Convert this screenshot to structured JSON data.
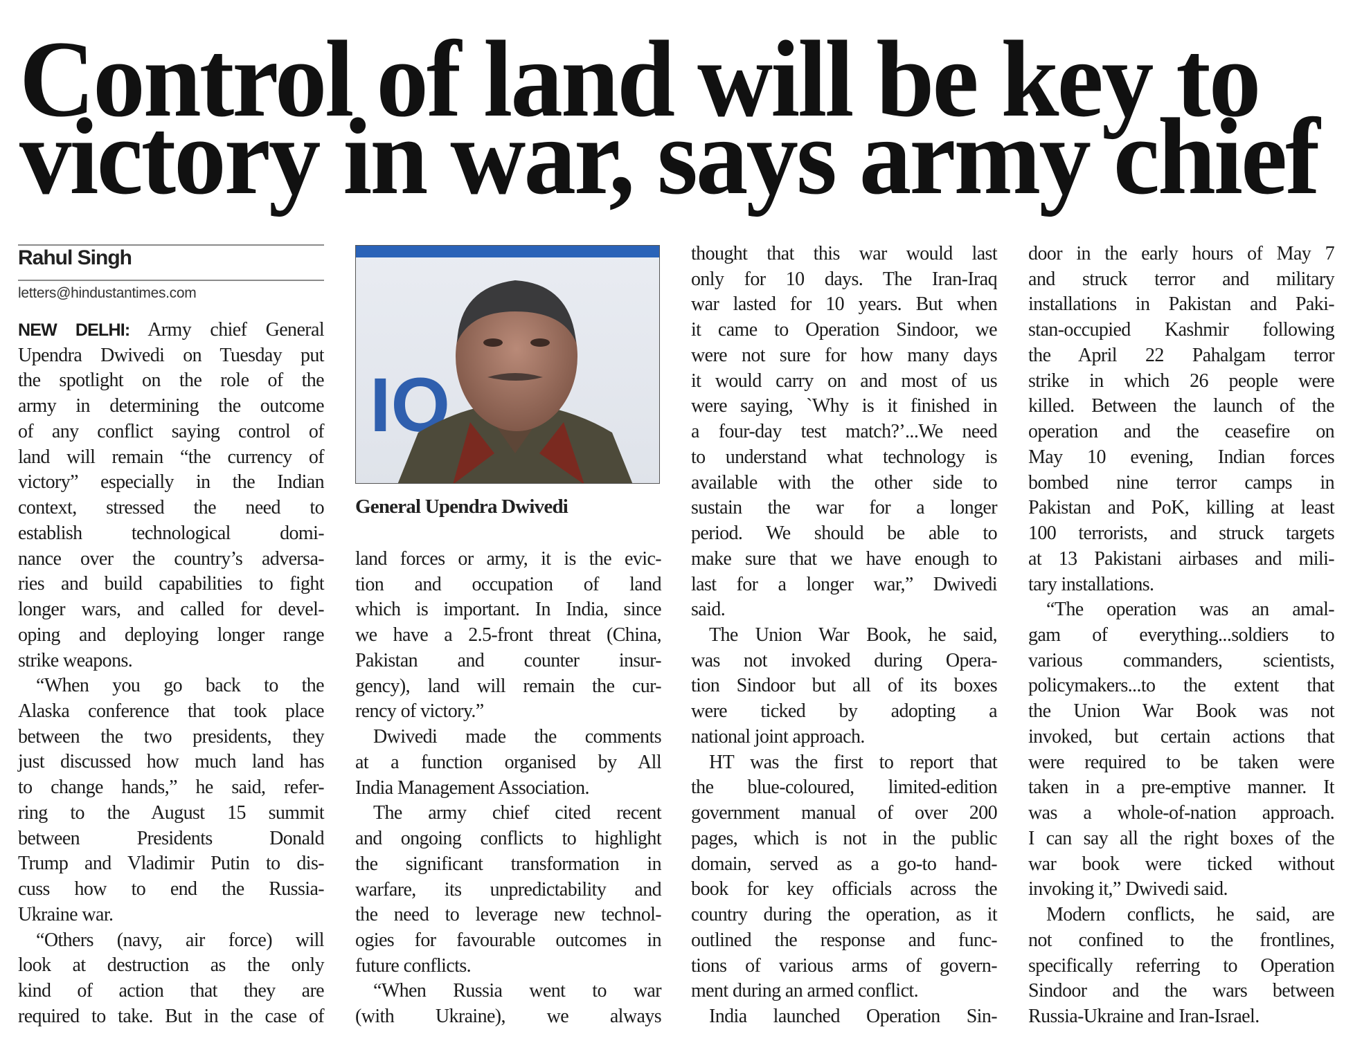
{
  "headline": {
    "line1": "Control of land will be key to",
    "line2": "victory in war, says army chief"
  },
  "byline": {
    "author": "Rahul Singh",
    "email": "letters@hindustantimes.com"
  },
  "photo": {
    "caption": "General Upendra Dwivedi",
    "backdrop_text": "IOIA"
  },
  "dateline": "NEW DELHI:",
  "columns": [
    [
      {
        "lines": [
          "Army chief General",
          "Upendra Dwivedi on Tuesday put",
          "the spotlight on the role of the",
          "army in determining the outcome",
          "of any conflict saying control of",
          "land will remain “the currency of",
          "victory” especially in the Indian",
          "context, stressed the need to",
          "establish technological domi-",
          "nance over the country’s adversa-",
          "ries and build capabilities to fight",
          "longer wars, and called for devel-",
          "oping and deploying longer range",
          "strike weapons."
        ]
      },
      {
        "lines": [
          "“When you go back to the",
          "Alaska conference that took place",
          "between the two presidents, they",
          "just discussed how much land has",
          "to change hands,” he said, refer-",
          "ring to the August 15 summit",
          "between Presidents Donald",
          "Trump and Vladimir Putin to dis-",
          "cuss how to end the Russia-",
          "Ukraine war."
        ]
      },
      {
        "lines": [
          "“Others (navy, air force) will",
          "look at destruction as the only",
          "kind of action that they are",
          "required to take. But in the case of"
        ],
        "continues": true
      }
    ],
    [
      {
        "lines": [
          "land forces or army, it is the evic-",
          "tion and occupation of land",
          "which is important. In India, since",
          "we have a 2.5-front threat (China,",
          "Pakistan and counter insur-",
          "gency), land will remain the cur-",
          "rency of victory.”"
        ],
        "continued": true
      },
      {
        "lines": [
          "Dwivedi made the comments",
          "at a function organised by All",
          "India Management Association."
        ]
      },
      {
        "lines": [
          "The army chief cited recent",
          "and ongoing conflicts to highlight",
          "the significant transformation in",
          "warfare, its unpredictability and",
          "the need to leverage new technol-",
          "ogies for favourable outcomes in",
          "future conflicts."
        ]
      },
      {
        "lines": [
          "“When Russia went to war",
          "(with Ukraine), we always"
        ],
        "continues": true
      }
    ],
    [
      {
        "lines": [
          "thought that this war would last",
          "only for 10 days. The Iran-Iraq",
          "war lasted for 10 years. But when",
          "it came to Operation Sindoor, we",
          "were not sure for how many days",
          "it would carry on and most of us",
          "were saying, `Why is it finished in",
          "a four-day test match?’...We need",
          "to understand what technology is",
          "available with the other side to",
          "sustain the war for a longer",
          "period. We should be able to",
          "make sure that we have enough to",
          "last for a longer war,” Dwivedi",
          "said."
        ],
        "continued": true
      },
      {
        "lines": [
          "The Union War Book, he said,",
          "was not invoked during Opera-",
          "tion Sindoor but all of its boxes",
          "were ticked by adopting a",
          "national joint approach."
        ]
      },
      {
        "lines": [
          "HT was the first to report that",
          "the blue-coloured, limited-edition",
          "government manual of over 200",
          "pages, which is not in the public",
          "domain, served as a go-to hand-",
          "book for key officials across the",
          "country during the operation, as it",
          "outlined the response and func-",
          "tions of various arms of govern-",
          "ment during an armed conflict."
        ]
      },
      {
        "lines": [
          "India launched Operation Sin-"
        ],
        "continues": true
      }
    ],
    [
      {
        "lines": [
          "door in the early hours of May 7",
          "and struck terror and military",
          "installations in Pakistan and Paki-",
          "stan-occupied Kashmir following",
          "the April 22 Pahalgam terror",
          "strike in which 26 people were",
          "killed. Between the launch of the",
          "operation and the ceasefire on",
          "May 10 evening, Indian forces",
          "bombed nine terror camps in",
          "Pakistan and PoK, killing at least",
          "100 terrorists, and struck targets",
          "at 13 Pakistani airbases and mili-",
          "tary installations."
        ],
        "continued": true
      },
      {
        "lines": [
          "“The operation was an amal-",
          "gam of everything...soldiers to",
          "various commanders, scientists,",
          "policymakers...to the extent that",
          "the Union War Book was not",
          "invoked, but certain actions that",
          "were required to be taken were",
          "taken in a pre-emptive manner. It",
          "was a whole-of-nation approach.",
          "I can say all the right boxes of the",
          "war book were ticked without",
          "invoking it,” Dwivedi said."
        ]
      },
      {
        "lines": [
          "Modern conflicts, he said, are",
          "not confined to the frontlines,",
          "specifically referring to Operation",
          "Sindoor and the wars between",
          "Russia-Ukraine and Iran-Israel."
        ]
      }
    ]
  ]
}
